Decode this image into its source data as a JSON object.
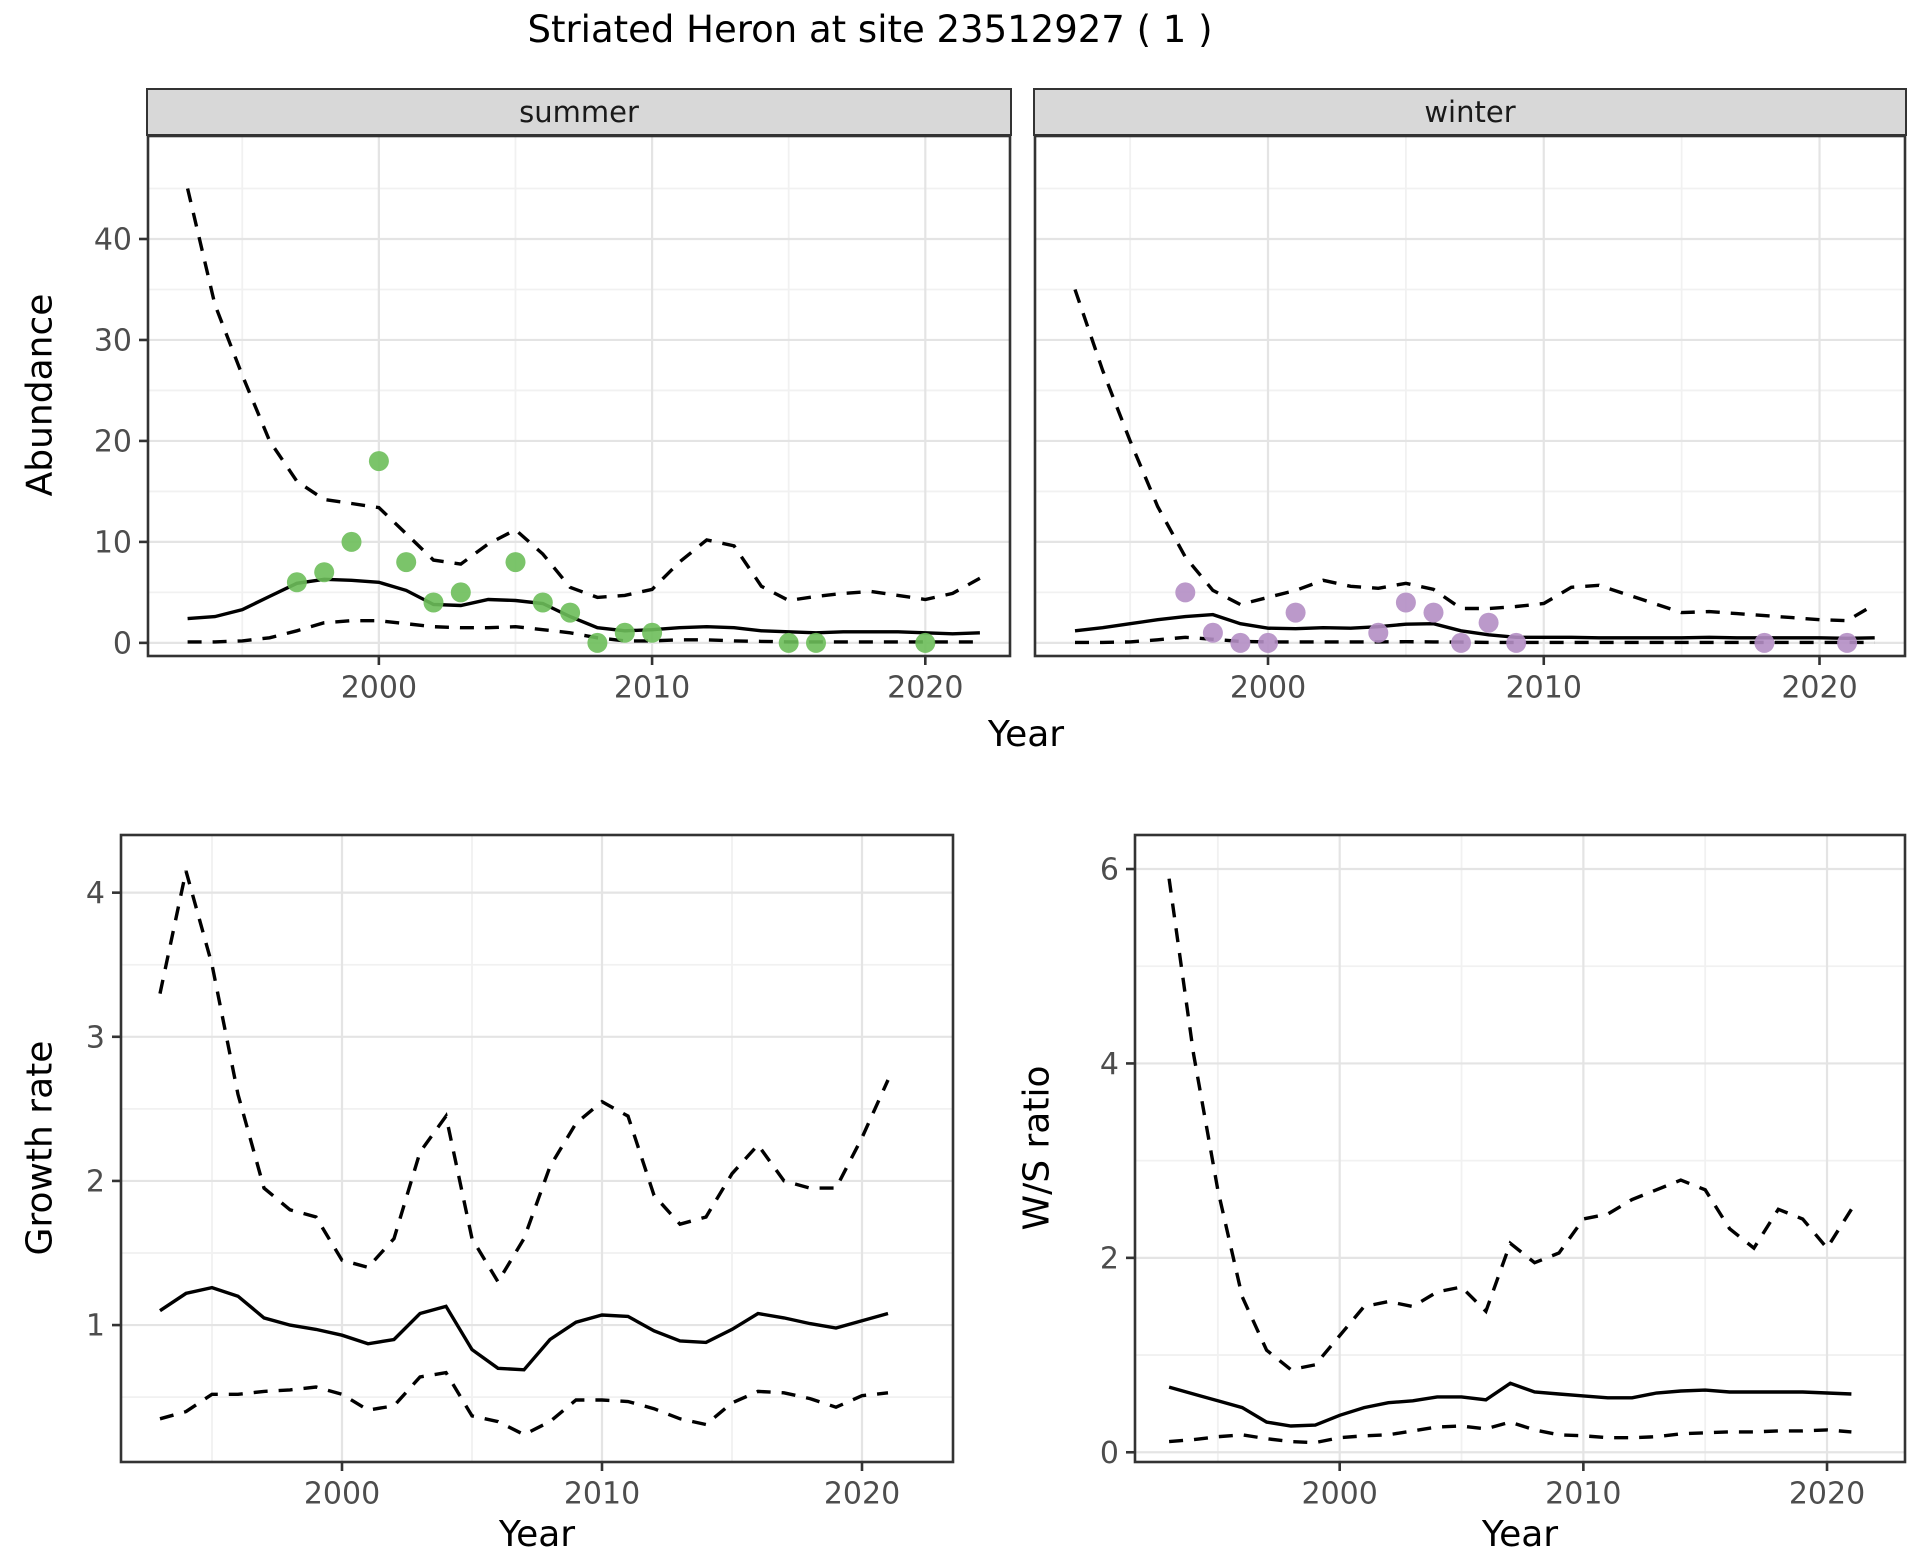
{
  "title": "Striated Heron at site 23512927 ( 1 )",
  "facets": {
    "summer": "summer",
    "winter": "winter"
  },
  "axis_labels": {
    "abundance": "Abundance",
    "year_top": "Year",
    "growth_rate": "Growth rate",
    "year_growth": "Year",
    "ws_ratio": "W/S ratio",
    "year_ws": "Year"
  },
  "colors": {
    "summer_point": "#6DBE5A",
    "winter_point": "#B48EC4",
    "line": "#000000",
    "grid_major": "#E4E4E4",
    "grid_minor": "#F1F1F1",
    "strip_fill": "#D8D8D8",
    "panel_border": "#333333",
    "tick_text": "#4d4d4d"
  },
  "chart_data": [
    {
      "id": "abundance_summer",
      "type": "line",
      "facet_label": "summer",
      "ylabel": "Abundance",
      "xlabel": "Year",
      "x_domain": [
        1991.55,
        2023.1
      ],
      "y_domain": [
        -1.3,
        50.2
      ],
      "x_ticks": [
        2000,
        2010,
        2020
      ],
      "x_minor": [
        1995,
        2005,
        2015
      ],
      "y_ticks": [
        0,
        10,
        20,
        30,
        40
      ],
      "y_minor": [
        5,
        15,
        25,
        35,
        45
      ],
      "series": [
        {
          "name": "upper_ci",
          "style": "dashed",
          "x": [
            1993,
            1994,
            1995,
            1996,
            1997,
            1998,
            1999,
            2000,
            2001,
            2002,
            2003,
            2004,
            2005,
            2006,
            2007,
            2008,
            2009,
            2010,
            2011,
            2012,
            2013,
            2014,
            2015,
            2016,
            2017,
            2018,
            2019,
            2020,
            2021,
            2022
          ],
          "y": [
            45,
            33.5,
            26.5,
            20,
            16,
            14.2,
            13.8,
            13.4,
            10.8,
            8.2,
            7.8,
            9.8,
            11.2,
            8.8,
            5.5,
            4.5,
            4.7,
            5.3,
            8,
            10.2,
            9.6,
            5.6,
            4.2,
            4.6,
            4.9,
            5.1,
            4.7,
            4.3,
            4.9,
            6.4
          ]
        },
        {
          "name": "median",
          "style": "solid",
          "x": [
            1993,
            1994,
            1995,
            1996,
            1997,
            1998,
            1999,
            2000,
            2001,
            2002,
            2003,
            2004,
            2005,
            2006,
            2007,
            2008,
            2009,
            2010,
            2011,
            2012,
            2013,
            2014,
            2015,
            2016,
            2017,
            2018,
            2019,
            2020,
            2021,
            2022
          ],
          "y": [
            2.4,
            2.6,
            3.3,
            4.6,
            5.9,
            6.3,
            6.2,
            6.0,
            5.2,
            3.8,
            3.7,
            4.3,
            4.2,
            3.9,
            2.6,
            1.5,
            1.2,
            1.3,
            1.5,
            1.6,
            1.5,
            1.2,
            1.1,
            1.0,
            1.1,
            1.1,
            1.1,
            1.0,
            0.9,
            1.0
          ]
        },
        {
          "name": "lower_ci",
          "style": "dashed",
          "x": [
            1993,
            1994,
            1995,
            1996,
            1997,
            1998,
            1999,
            2000,
            2001,
            2002,
            2003,
            2004,
            2005,
            2006,
            2007,
            2008,
            2009,
            2010,
            2011,
            2012,
            2013,
            2014,
            2015,
            2016,
            2017,
            2018,
            2019,
            2020,
            2021,
            2022
          ],
          "y": [
            0.1,
            0.1,
            0.2,
            0.5,
            1.2,
            2.0,
            2.2,
            2.2,
            1.9,
            1.6,
            1.5,
            1.5,
            1.6,
            1.3,
            1.0,
            0.5,
            0.2,
            0.2,
            0.3,
            0.3,
            0.2,
            0.15,
            0.1,
            0.1,
            0.1,
            0.1,
            0.1,
            0.1,
            0.1,
            0.1
          ]
        }
      ],
      "points": {
        "name": "observed_counts",
        "color_key": "summer_point",
        "x": [
          1997,
          1998,
          1999,
          2000,
          2001,
          2002,
          2003,
          2005,
          2006,
          2007,
          2008,
          2009,
          2010,
          2015,
          2016,
          2020
        ],
        "y": [
          6,
          7,
          10,
          18,
          8,
          4,
          5,
          8,
          4,
          3,
          0,
          1,
          1,
          0,
          0,
          0
        ]
      }
    },
    {
      "id": "abundance_winter",
      "type": "line",
      "facet_label": "winter",
      "ylabel": "Abundance",
      "xlabel": "Year",
      "x_domain": [
        1991.55,
        2023.1
      ],
      "y_domain": [
        -1.3,
        50.2
      ],
      "x_ticks": [
        2000,
        2010,
        2020
      ],
      "x_minor": [
        1995,
        2005,
        2015
      ],
      "y_ticks": [
        0,
        10,
        20,
        30,
        40
      ],
      "y_minor": [
        5,
        15,
        25,
        35,
        45
      ],
      "series": [
        {
          "name": "upper_ci",
          "style": "dashed",
          "x": [
            1993,
            1994,
            1995,
            1996,
            1997,
            1998,
            1999,
            2000,
            2001,
            2002,
            2003,
            2004,
            2005,
            2006,
            2007,
            2008,
            2009,
            2010,
            2011,
            2012,
            2013,
            2014,
            2015,
            2016,
            2017,
            2018,
            2019,
            2020,
            2021,
            2022
          ],
          "y": [
            35,
            27,
            20,
            13.5,
            8.5,
            5.2,
            3.8,
            4.5,
            5.2,
            6.2,
            5.6,
            5.4,
            5.9,
            5.3,
            3.4,
            3.4,
            3.6,
            3.9,
            5.5,
            5.7,
            4.8,
            3.9,
            3.0,
            3.1,
            2.9,
            2.7,
            2.5,
            2.3,
            2.2,
            3.8
          ]
        },
        {
          "name": "median",
          "style": "solid",
          "x": [
            1993,
            1994,
            1995,
            1996,
            1997,
            1998,
            1999,
            2000,
            2001,
            2002,
            2003,
            2004,
            2005,
            2006,
            2007,
            2008,
            2009,
            2010,
            2011,
            2012,
            2013,
            2014,
            2015,
            2016,
            2017,
            2018,
            2019,
            2020,
            2021,
            2022
          ],
          "y": [
            1.2,
            1.5,
            1.9,
            2.3,
            2.6,
            2.8,
            1.9,
            1.45,
            1.4,
            1.5,
            1.45,
            1.6,
            1.85,
            1.9,
            1.2,
            0.8,
            0.55,
            0.55,
            0.55,
            0.5,
            0.5,
            0.5,
            0.5,
            0.55,
            0.5,
            0.5,
            0.5,
            0.5,
            0.45,
            0.5
          ]
        },
        {
          "name": "lower_ci",
          "style": "dashed",
          "x": [
            1993,
            1994,
            1995,
            1996,
            1997,
            1998,
            1999,
            2000,
            2001,
            2002,
            2003,
            2004,
            2005,
            2006,
            2007,
            2008,
            2009,
            2010,
            2011,
            2012,
            2013,
            2014,
            2015,
            2016,
            2017,
            2018,
            2019,
            2020,
            2021,
            2022
          ],
          "y": [
            0.05,
            0.05,
            0.1,
            0.3,
            0.55,
            0.35,
            0.15,
            0.1,
            0.1,
            0.1,
            0.1,
            0.1,
            0.12,
            0.1,
            0.08,
            0.05,
            0.05,
            0.05,
            0.05,
            0.05,
            0.05,
            0.05,
            0.05,
            0.05,
            0.05,
            0.05,
            0.05,
            0.05,
            0.05,
            0.05
          ]
        }
      ],
      "points": {
        "name": "observed_counts",
        "color_key": "winter_point",
        "x": [
          1997,
          1998,
          1999,
          2000,
          2001,
          2004,
          2005,
          2006,
          2007,
          2008,
          2009,
          2018,
          2021
        ],
        "y": [
          5,
          1,
          0,
          0,
          3,
          1,
          4,
          3,
          0,
          2,
          0,
          0,
          0
        ]
      }
    },
    {
      "id": "growth_rate",
      "type": "line",
      "ylabel": "Growth rate",
      "xlabel": "Year",
      "x_domain": [
        1991.5,
        2023.5
      ],
      "y_domain": [
        0.05,
        4.4
      ],
      "x_ticks": [
        2000,
        2010,
        2020
      ],
      "x_minor": [
        1995,
        2005,
        2015
      ],
      "y_ticks": [
        1,
        2,
        3,
        4
      ],
      "y_minor": [
        0.5,
        1.5,
        2.5,
        3.5
      ],
      "series": [
        {
          "name": "upper_ci",
          "style": "dashed",
          "x": [
            1993,
            1994,
            1995,
            1996,
            1997,
            1998,
            1999,
            2000,
            2001,
            2002,
            2003,
            2004,
            2005,
            2006,
            2007,
            2008,
            2009,
            2010,
            2011,
            2012,
            2013,
            2014,
            2015,
            2016,
            2017,
            2018,
            2019,
            2020,
            2021
          ],
          "y": [
            3.3,
            4.15,
            3.5,
            2.6,
            1.95,
            1.8,
            1.75,
            1.45,
            1.4,
            1.6,
            2.2,
            2.45,
            1.6,
            1.3,
            1.6,
            2.1,
            2.4,
            2.55,
            2.45,
            1.9,
            1.7,
            1.75,
            2.05,
            2.25,
            2.0,
            1.95,
            1.95,
            2.3,
            2.7
          ]
        },
        {
          "name": "median",
          "style": "solid",
          "x": [
            1993,
            1994,
            1995,
            1996,
            1997,
            1998,
            1999,
            2000,
            2001,
            2002,
            2003,
            2004,
            2005,
            2006,
            2007,
            2008,
            2009,
            2010,
            2011,
            2012,
            2013,
            2014,
            2015,
            2016,
            2017,
            2018,
            2019,
            2020,
            2021
          ],
          "y": [
            1.1,
            1.22,
            1.26,
            1.2,
            1.05,
            1.0,
            0.97,
            0.93,
            0.87,
            0.9,
            1.08,
            1.13,
            0.83,
            0.7,
            0.69,
            0.9,
            1.02,
            1.07,
            1.06,
            0.96,
            0.89,
            0.88,
            0.97,
            1.08,
            1.05,
            1.01,
            0.98,
            1.03,
            1.08
          ]
        },
        {
          "name": "lower_ci",
          "style": "dashed",
          "x": [
            1993,
            1994,
            1995,
            1996,
            1997,
            1998,
            1999,
            2000,
            2001,
            2002,
            2003,
            2004,
            2005,
            2006,
            2007,
            2008,
            2009,
            2010,
            2011,
            2012,
            2013,
            2014,
            2015,
            2016,
            2017,
            2018,
            2019,
            2020,
            2021
          ],
          "y": [
            0.35,
            0.4,
            0.52,
            0.52,
            0.54,
            0.55,
            0.57,
            0.52,
            0.41,
            0.44,
            0.64,
            0.67,
            0.37,
            0.33,
            0.24,
            0.33,
            0.48,
            0.48,
            0.47,
            0.42,
            0.35,
            0.31,
            0.46,
            0.54,
            0.53,
            0.49,
            0.43,
            0.51,
            0.53
          ]
        }
      ]
    },
    {
      "id": "ws_ratio",
      "type": "line",
      "ylabel": "W/S ratio",
      "xlabel": "Year",
      "x_domain": [
        1991.6,
        2023.2
      ],
      "y_domain": [
        -0.1,
        6.35
      ],
      "x_ticks": [
        2000,
        2010,
        2020
      ],
      "x_minor": [
        1995,
        2005,
        2015
      ],
      "y_ticks": [
        0,
        2,
        4,
        6
      ],
      "y_minor": [
        1,
        3,
        5
      ],
      "series": [
        {
          "name": "upper_ci",
          "style": "dashed",
          "x": [
            1993,
            1994,
            1995,
            1996,
            1997,
            1998,
            1999,
            2000,
            2001,
            2002,
            2003,
            2004,
            2005,
            2006,
            2007,
            2008,
            2009,
            2010,
            2011,
            2012,
            2013,
            2014,
            2015,
            2016,
            2017,
            2018,
            2019,
            2020,
            2021
          ],
          "y": [
            5.9,
            4.1,
            2.7,
            1.6,
            1.05,
            0.85,
            0.9,
            1.2,
            1.5,
            1.55,
            1.5,
            1.65,
            1.7,
            1.45,
            2.15,
            1.95,
            2.05,
            2.4,
            2.45,
            2.6,
            2.7,
            2.8,
            2.7,
            2.3,
            2.1,
            2.5,
            2.4,
            2.1,
            2.5
          ]
        },
        {
          "name": "median",
          "style": "solid",
          "x": [
            1993,
            1994,
            1995,
            1996,
            1997,
            1998,
            1999,
            2000,
            2001,
            2002,
            2003,
            2004,
            2005,
            2006,
            2007,
            2008,
            2009,
            2010,
            2011,
            2012,
            2013,
            2014,
            2015,
            2016,
            2017,
            2018,
            2019,
            2020,
            2021
          ],
          "y": [
            0.67,
            0.6,
            0.53,
            0.46,
            0.31,
            0.27,
            0.28,
            0.38,
            0.46,
            0.51,
            0.53,
            0.57,
            0.57,
            0.54,
            0.71,
            0.62,
            0.6,
            0.58,
            0.56,
            0.56,
            0.61,
            0.63,
            0.64,
            0.62,
            0.62,
            0.62,
            0.62,
            0.61,
            0.6
          ]
        },
        {
          "name": "lower_ci",
          "style": "dashed",
          "x": [
            1993,
            1994,
            1995,
            1996,
            1997,
            1998,
            1999,
            2000,
            2001,
            2002,
            2003,
            2004,
            2005,
            2006,
            2007,
            2008,
            2009,
            2010,
            2011,
            2012,
            2013,
            2014,
            2015,
            2016,
            2017,
            2018,
            2019,
            2020,
            2021
          ],
          "y": [
            0.11,
            0.13,
            0.16,
            0.18,
            0.14,
            0.11,
            0.1,
            0.15,
            0.17,
            0.18,
            0.22,
            0.26,
            0.27,
            0.24,
            0.31,
            0.23,
            0.18,
            0.17,
            0.15,
            0.15,
            0.16,
            0.19,
            0.2,
            0.21,
            0.21,
            0.22,
            0.22,
            0.23,
            0.21
          ]
        }
      ]
    }
  ]
}
